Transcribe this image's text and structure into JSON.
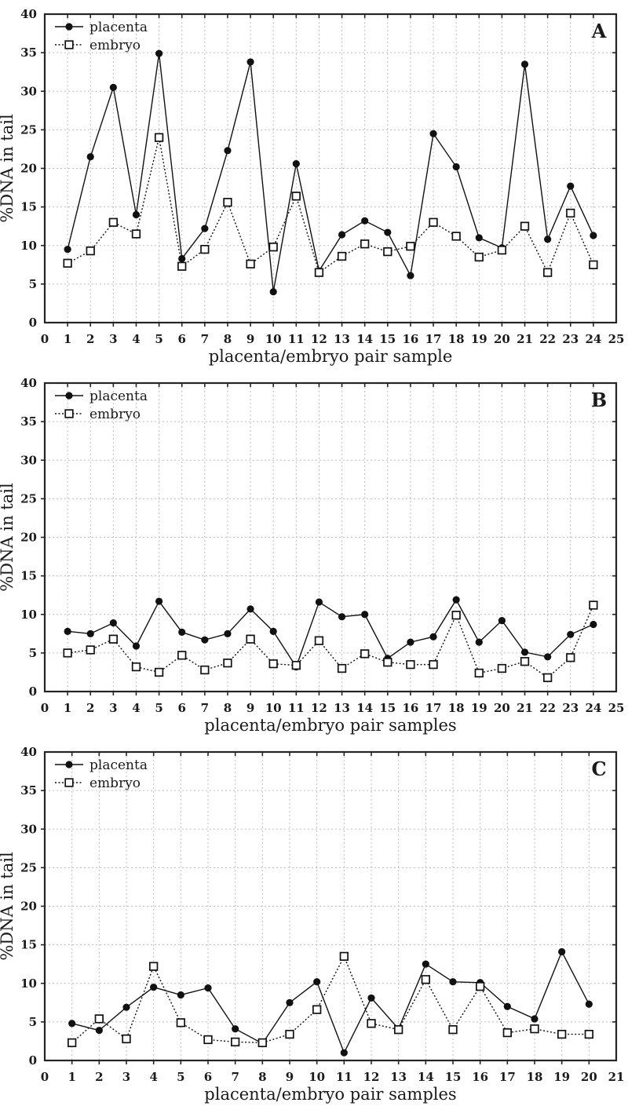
{
  "figure": {
    "ylabel": "%DNA in tail",
    "legend": [
      {
        "name": "placenta",
        "marker": "filled-circle",
        "line": "solid"
      },
      {
        "name": "embryo",
        "marker": "open-square",
        "line": "dotted"
      }
    ]
  },
  "colors": {
    "background": "#ffffff",
    "axis": "#252525",
    "grid": "#bdbdbd",
    "series": "#111111",
    "open_marker_fill": "#ffffff"
  },
  "chart_data": [
    {
      "type": "line",
      "panel_label": "A",
      "xlabel": "placenta/embryo pair sample",
      "ylabel": "%DNA in tail",
      "xlim": [
        0,
        25
      ],
      "ylim": [
        0,
        40
      ],
      "x_ticks": [
        0,
        1,
        2,
        3,
        4,
        5,
        6,
        7,
        8,
        9,
        10,
        11,
        12,
        13,
        14,
        15,
        16,
        17,
        18,
        19,
        20,
        21,
        22,
        23,
        24,
        25
      ],
      "y_ticks": [
        0,
        5,
        10,
        15,
        20,
        25,
        30,
        35,
        40
      ],
      "grid": true,
      "legend_position": "top-left",
      "x": [
        1,
        2,
        3,
        4,
        5,
        6,
        7,
        8,
        9,
        10,
        11,
        12,
        13,
        14,
        15,
        16,
        17,
        18,
        19,
        20,
        21,
        22,
        23,
        24
      ],
      "series": [
        {
          "name": "placenta",
          "marker": "filled-circle",
          "line": "solid",
          "values": [
            9.5,
            21.5,
            30.5,
            14.0,
            34.9,
            8.3,
            12.2,
            22.3,
            33.8,
            4.0,
            20.6,
            6.7,
            11.4,
            13.2,
            11.7,
            6.1,
            24.5,
            20.2,
            11.0,
            9.7,
            33.5,
            10.8,
            17.7,
            11.3
          ]
        },
        {
          "name": "embryo",
          "marker": "open-square",
          "line": "dotted",
          "values": [
            7.7,
            9.3,
            13.0,
            11.5,
            24.0,
            7.3,
            9.5,
            15.6,
            7.6,
            9.8,
            16.4,
            6.5,
            8.6,
            10.2,
            9.2,
            9.9,
            13.0,
            11.2,
            8.5,
            9.4,
            12.5,
            6.5,
            14.2,
            7.5
          ]
        }
      ]
    },
    {
      "type": "line",
      "panel_label": "B",
      "xlabel": "placenta/embryo pair samples",
      "ylabel": "%DNA in tail",
      "xlim": [
        0,
        25
      ],
      "ylim": [
        0,
        40
      ],
      "x_ticks": [
        0,
        1,
        2,
        3,
        4,
        5,
        6,
        7,
        8,
        9,
        10,
        11,
        12,
        13,
        14,
        15,
        16,
        17,
        18,
        19,
        20,
        21,
        22,
        23,
        24,
        25
      ],
      "y_ticks": [
        0,
        5,
        10,
        15,
        20,
        25,
        30,
        35,
        40
      ],
      "grid": true,
      "legend_position": "top-left",
      "x": [
        1,
        2,
        3,
        4,
        5,
        6,
        7,
        8,
        9,
        10,
        11,
        12,
        13,
        14,
        15,
        16,
        17,
        18,
        19,
        20,
        21,
        22,
        23,
        24
      ],
      "series": [
        {
          "name": "placenta",
          "marker": "filled-circle",
          "line": "solid",
          "values": [
            7.8,
            7.5,
            8.9,
            5.9,
            11.7,
            7.7,
            6.7,
            7.5,
            10.7,
            7.8,
            3.2,
            11.6,
            9.7,
            10.0,
            4.3,
            6.4,
            7.1,
            11.9,
            6.4,
            9.2,
            5.1,
            4.5,
            7.4,
            8.7
          ]
        },
        {
          "name": "embryo",
          "marker": "open-square",
          "line": "dotted",
          "values": [
            5.0,
            5.4,
            6.8,
            3.2,
            2.5,
            4.7,
            2.8,
            3.7,
            6.8,
            3.6,
            3.4,
            6.6,
            3.0,
            4.9,
            3.8,
            3.5,
            3.5,
            9.9,
            2.4,
            3.0,
            3.9,
            1.8,
            4.4,
            11.2
          ]
        }
      ]
    },
    {
      "type": "line",
      "panel_label": "C",
      "xlabel": "placenta/embryo pair samples",
      "ylabel": "%DNA in tail",
      "xlim": [
        0,
        21
      ],
      "ylim": [
        0,
        40
      ],
      "x_ticks": [
        0,
        1,
        2,
        3,
        4,
        5,
        6,
        7,
        8,
        9,
        10,
        11,
        12,
        13,
        14,
        15,
        16,
        17,
        18,
        19,
        20,
        21
      ],
      "y_ticks": [
        0,
        5,
        10,
        15,
        20,
        25,
        30,
        35,
        40
      ],
      "grid": true,
      "legend_position": "top-left",
      "x": [
        1,
        2,
        3,
        4,
        5,
        6,
        7,
        8,
        9,
        10,
        11,
        12,
        13,
        14,
        15,
        16,
        17,
        18,
        19,
        20
      ],
      "series": [
        {
          "name": "placenta",
          "marker": "filled-circle",
          "line": "solid",
          "values": [
            4.8,
            3.9,
            6.9,
            9.5,
            8.5,
            9.4,
            4.1,
            2.2,
            7.5,
            10.2,
            1.0,
            8.1,
            4.1,
            12.5,
            10.2,
            10.1,
            7.0,
            5.4,
            14.1,
            7.3
          ]
        },
        {
          "name": "embryo",
          "marker": "open-square",
          "line": "dotted",
          "values": [
            2.3,
            5.4,
            2.8,
            12.2,
            4.9,
            2.7,
            2.4,
            2.3,
            3.4,
            6.6,
            13.5,
            4.8,
            4.0,
            10.5,
            4.0,
            9.6,
            3.6,
            4.1,
            3.4,
            3.4
          ]
        }
      ]
    }
  ]
}
